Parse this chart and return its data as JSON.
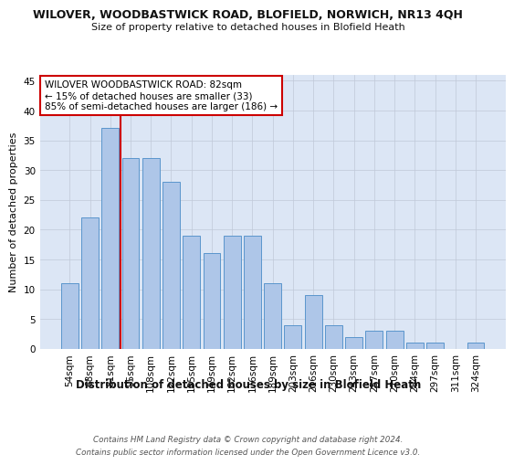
{
  "title": "WILOVER, WOODBASTWICK ROAD, BLOFIELD, NORWICH, NR13 4QH",
  "subtitle": "Size of property relative to detached houses in Blofield Heath",
  "xlabel": "Distribution of detached houses by size in Blofield Heath",
  "ylabel": "Number of detached properties",
  "categories": [
    "54sqm",
    "68sqm",
    "81sqm",
    "95sqm",
    "108sqm",
    "122sqm",
    "135sqm",
    "149sqm",
    "162sqm",
    "176sqm",
    "189sqm",
    "203sqm",
    "216sqm",
    "230sqm",
    "243sqm",
    "257sqm",
    "270sqm",
    "284sqm",
    "297sqm",
    "311sqm",
    "324sqm"
  ],
  "values": [
    11,
    22,
    37,
    32,
    32,
    28,
    19,
    16,
    19,
    19,
    11,
    4,
    9,
    4,
    2,
    3,
    3,
    1,
    1,
    0,
    1
  ],
  "bar_color": "#aec6e8",
  "bar_edge_color": "#5a96cc",
  "vline_x": 2.5,
  "vline_color": "#cc0000",
  "annotation_text": "WILOVER WOODBASTWICK ROAD: 82sqm\n← 15% of detached houses are smaller (33)\n85% of semi-detached houses are larger (186) →",
  "annotation_box_color": "#ffffff",
  "annotation_box_edge": "#cc0000",
  "footnote": "Contains HM Land Registry data © Crown copyright and database right 2024.\nContains public sector information licensed under the Open Government Licence v3.0.",
  "ylim": [
    0,
    46
  ],
  "background_color": "#ffffff",
  "plot_bg_color": "#dce6f5",
  "grid_color": "#c0c8d8"
}
